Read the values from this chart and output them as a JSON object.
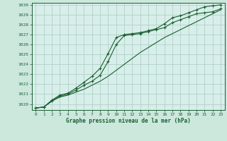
{
  "xlabel": "Graphe pression niveau de la mer (hPa)",
  "background_color": "#cce8dd",
  "plot_bg_color": "#d8eeea",
  "grid_color": "#a8ccc0",
  "line_color": "#1a5e30",
  "xlim": [
    -0.5,
    23.5
  ],
  "ylim": [
    1019.4,
    1030.2
  ],
  "yticks": [
    1020,
    1021,
    1022,
    1023,
    1024,
    1025,
    1026,
    1027,
    1028,
    1029,
    1030
  ],
  "xticks": [
    0,
    1,
    2,
    3,
    4,
    5,
    6,
    7,
    8,
    9,
    10,
    11,
    12,
    13,
    14,
    15,
    16,
    17,
    18,
    19,
    20,
    21,
    22,
    23
  ],
  "series1_x": [
    0,
    1,
    2,
    3,
    4,
    5,
    6,
    7,
    8,
    9,
    10,
    11,
    12,
    13,
    14,
    15,
    16,
    17,
    18,
    19,
    20,
    21,
    22,
    23
  ],
  "series1_y": [
    1019.6,
    1019.7,
    1020.3,
    1020.7,
    1020.9,
    1021.2,
    1021.5,
    1021.9,
    1022.3,
    1022.8,
    1023.4,
    1024.0,
    1024.6,
    1025.2,
    1025.7,
    1026.2,
    1026.7,
    1027.1,
    1027.5,
    1027.9,
    1028.3,
    1028.7,
    1029.1,
    1029.5
  ],
  "series2_x": [
    0,
    1,
    2,
    3,
    4,
    5,
    6,
    7,
    8,
    9,
    10,
    11,
    12,
    13,
    14,
    15,
    16,
    17,
    18,
    19,
    20,
    21,
    22,
    23
  ],
  "series2_y": [
    1019.6,
    1019.7,
    1020.3,
    1020.8,
    1021.0,
    1021.4,
    1021.9,
    1022.3,
    1022.9,
    1024.3,
    1026.0,
    1026.9,
    1027.0,
    1027.1,
    1027.3,
    1027.5,
    1027.7,
    1028.2,
    1028.5,
    1028.8,
    1029.1,
    1029.2,
    1029.3,
    1029.6
  ],
  "series3_x": [
    0,
    1,
    2,
    3,
    4,
    5,
    6,
    7,
    8,
    9,
    10,
    11,
    12,
    13,
    14,
    15,
    16,
    17,
    18,
    19,
    20,
    21,
    22,
    23
  ],
  "series3_y": [
    1019.6,
    1019.7,
    1020.4,
    1020.9,
    1021.1,
    1021.6,
    1022.2,
    1022.8,
    1023.6,
    1025.1,
    1026.7,
    1027.0,
    1027.1,
    1027.2,
    1027.4,
    1027.6,
    1028.1,
    1028.7,
    1028.9,
    1029.2,
    1029.5,
    1029.8,
    1029.9,
    1030.0
  ]
}
